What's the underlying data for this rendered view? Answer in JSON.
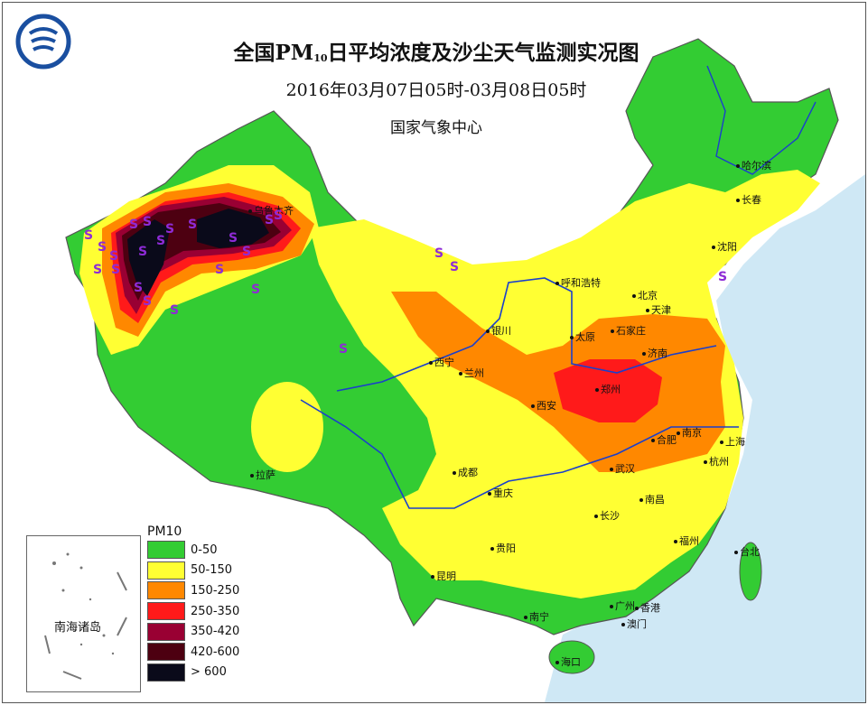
{
  "header": {
    "title_main": "全国PM",
    "title_sub": "10",
    "title_rest": "日平均浓度及沙尘天气监测实况图",
    "time_range": "2016年03月07日05时-03月08日05时",
    "agency": "国家气象中心"
  },
  "legend": {
    "title": "PM10",
    "items": [
      {
        "label": "0-50",
        "color": "#33cc33"
      },
      {
        "label": "50-150",
        "color": "#ffff33"
      },
      {
        "label": "150-250",
        "color": "#ff8800"
      },
      {
        "label": "250-350",
        "color": "#ff1a1a"
      },
      {
        "label": "350-420",
        "color": "#990033"
      },
      {
        "label": "420-600",
        "color": "#4d0011"
      },
      {
        "label": "> 600",
        "color": "#0a0a1a"
      }
    ]
  },
  "inset": {
    "label": "南海诸岛"
  },
  "cities": {
    "haerbin": "哈尔滨",
    "changchun": "长春",
    "shenyang": "沈阳",
    "huhehaote": "呼和浩特",
    "beijing": "北京",
    "tianjin": "天津",
    "shijiazhuang": "石家庄",
    "taiyuan": "太原",
    "jinan": "济南",
    "yinchuan": "银川",
    "xining": "西宁",
    "lanzhou": "兰州",
    "xian": "西安",
    "zhengzhou": "郑州",
    "hefei": "合肥",
    "nanjing": "南京",
    "shanghai": "上海",
    "hangzhou": "杭州",
    "wuhan": "武汉",
    "chengdu": "成都",
    "chongqing": "重庆",
    "lasa": "拉萨",
    "changsha": "长沙",
    "nanchang": "南昌",
    "fuzhou": "福州",
    "taibei": "台北",
    "guiyang": "贵阳",
    "kunming": "昆明",
    "nanning": "南宁",
    "guangzhou": "广州",
    "xianggang": "香港",
    "aomen": "澳门",
    "haikou": "海口",
    "wulumuqi": "乌鲁木齐"
  },
  "dust_symbol": "S",
  "colors": {
    "sea": "#cfe8f5",
    "river": "#1a3fcc",
    "boundary": "#666666"
  }
}
